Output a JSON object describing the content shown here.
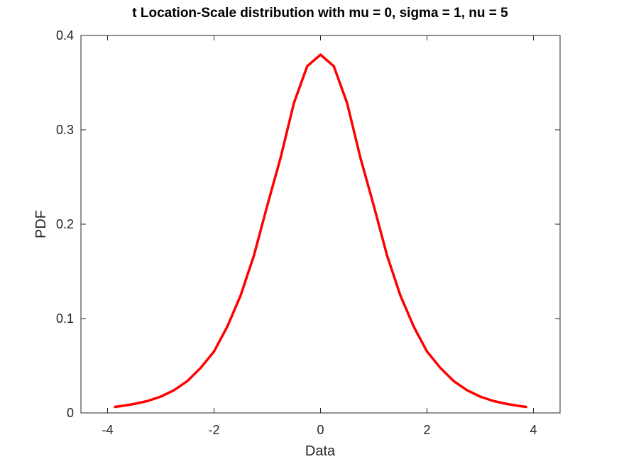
{
  "chart_data": {
    "type": "line",
    "title": "t Location-Scale distribution with mu = 0, sigma = 1, nu = 5",
    "xlabel": "Data",
    "ylabel": "PDF",
    "xlim": [
      -4.5,
      4.5
    ],
    "ylim": [
      0,
      0.4
    ],
    "xticks": [
      -4,
      -2,
      0,
      2,
      4
    ],
    "xtick_labels": [
      "-4",
      "-2",
      "0",
      "2",
      "4"
    ],
    "yticks": [
      0,
      0.1,
      0.2,
      0.3,
      0.4
    ],
    "ytick_labels": [
      "0",
      "0.1",
      "0.2",
      "0.3",
      "0.4"
    ],
    "grid": false,
    "series": [
      {
        "color": "#ff0000",
        "x": [
          -3.86,
          -3.75,
          -3.5,
          -3.25,
          -3.0,
          -2.75,
          -2.5,
          -2.25,
          -2.0,
          -1.75,
          -1.5,
          -1.25,
          -1.0,
          -0.75,
          -0.5,
          -0.25,
          0.0,
          0.25,
          0.5,
          0.75,
          1.0,
          1.25,
          1.5,
          1.75,
          2.0,
          2.25,
          2.5,
          2.75,
          3.0,
          3.25,
          3.5,
          3.75,
          3.86
        ],
        "y": [
          0.0064,
          0.0072,
          0.0095,
          0.0126,
          0.0173,
          0.0241,
          0.0338,
          0.0478,
          0.0651,
          0.0916,
          0.1245,
          0.1669,
          0.2197,
          0.2703,
          0.3283,
          0.3674,
          0.3796,
          0.3674,
          0.3283,
          0.2703,
          0.2197,
          0.1669,
          0.1245,
          0.0916,
          0.0651,
          0.0478,
          0.0338,
          0.0241,
          0.0173,
          0.0126,
          0.0095,
          0.0072,
          0.0064
        ]
      }
    ]
  }
}
